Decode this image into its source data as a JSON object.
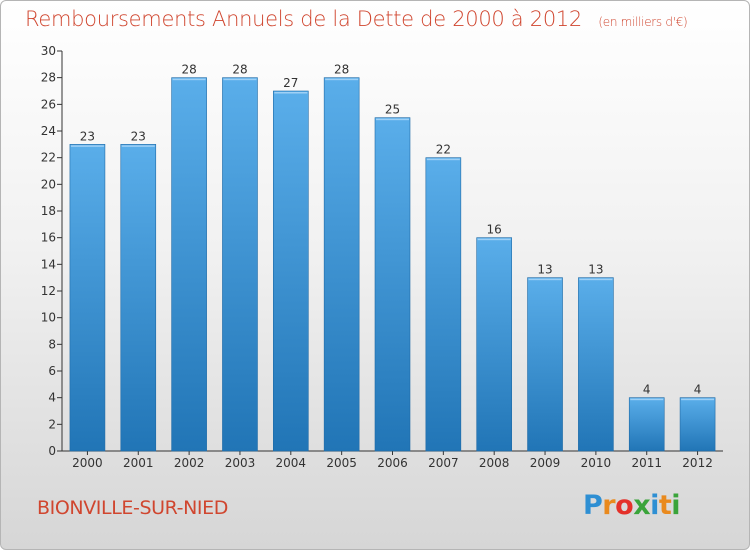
{
  "header": {
    "title": "Remboursements Annuels de la Dette de 2000 à 2012",
    "unit": "(en milliers d'€)"
  },
  "footer": {
    "commune": "BIONVILLE-SUR-NIED",
    "logo": {
      "letters": [
        "P",
        "r",
        "o",
        "x",
        "i",
        "t",
        "i"
      ],
      "colors": [
        "#2e8fd3",
        "#e98a1e",
        "#e4312a",
        "#3aa43a",
        "#2e8fd3",
        "#e98a1e",
        "#3aa43a"
      ]
    }
  },
  "colors": {
    "title": "#d0462f",
    "bar_top": "#5aaeea",
    "bar_bottom": "#2175b6"
  },
  "chart_data": {
    "type": "bar",
    "title": "Remboursements Annuels de la Dette de 2000 à 2012",
    "subtitle": "(en milliers d'€)",
    "xlabel": "",
    "ylabel": "",
    "categories": [
      "2000",
      "2001",
      "2002",
      "2003",
      "2004",
      "2005",
      "2006",
      "2007",
      "2008",
      "2009",
      "2010",
      "2011",
      "2012"
    ],
    "values": [
      23,
      23,
      28,
      28,
      27,
      28,
      25,
      22,
      16,
      13,
      13,
      4,
      4
    ],
    "ylim": [
      0,
      30
    ],
    "yticks": [
      0,
      2,
      4,
      6,
      8,
      10,
      12,
      14,
      16,
      18,
      20,
      22,
      24,
      26,
      28,
      30
    ],
    "grid": false,
    "legend": "none"
  }
}
